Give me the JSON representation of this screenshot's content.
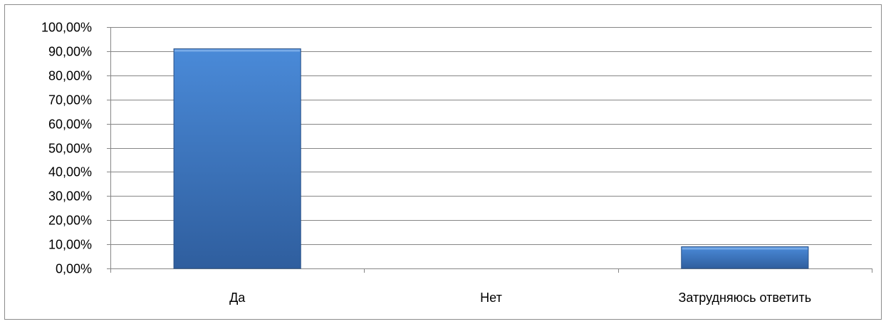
{
  "chart_data": {
    "type": "bar",
    "categories": [
      "Да",
      "Нет",
      "Затрудняюсь ответить"
    ],
    "values": [
      91.0,
      0.0,
      9.0
    ],
    "ylim": [
      0,
      100
    ],
    "ytick_step": 10,
    "ytick_labels": [
      "0,00%",
      "10,00%",
      "20,00%",
      "30,00%",
      "40,00%",
      "50,00%",
      "60,00%",
      "70,00%",
      "80,00%",
      "90,00%",
      "100,00%"
    ],
    "grid": true,
    "legend": "none",
    "colors": {
      "bar_light": "#4a8ad8",
      "bar_dark": "#2f5e9e",
      "grid": "#868686",
      "axis": "#868686"
    }
  }
}
